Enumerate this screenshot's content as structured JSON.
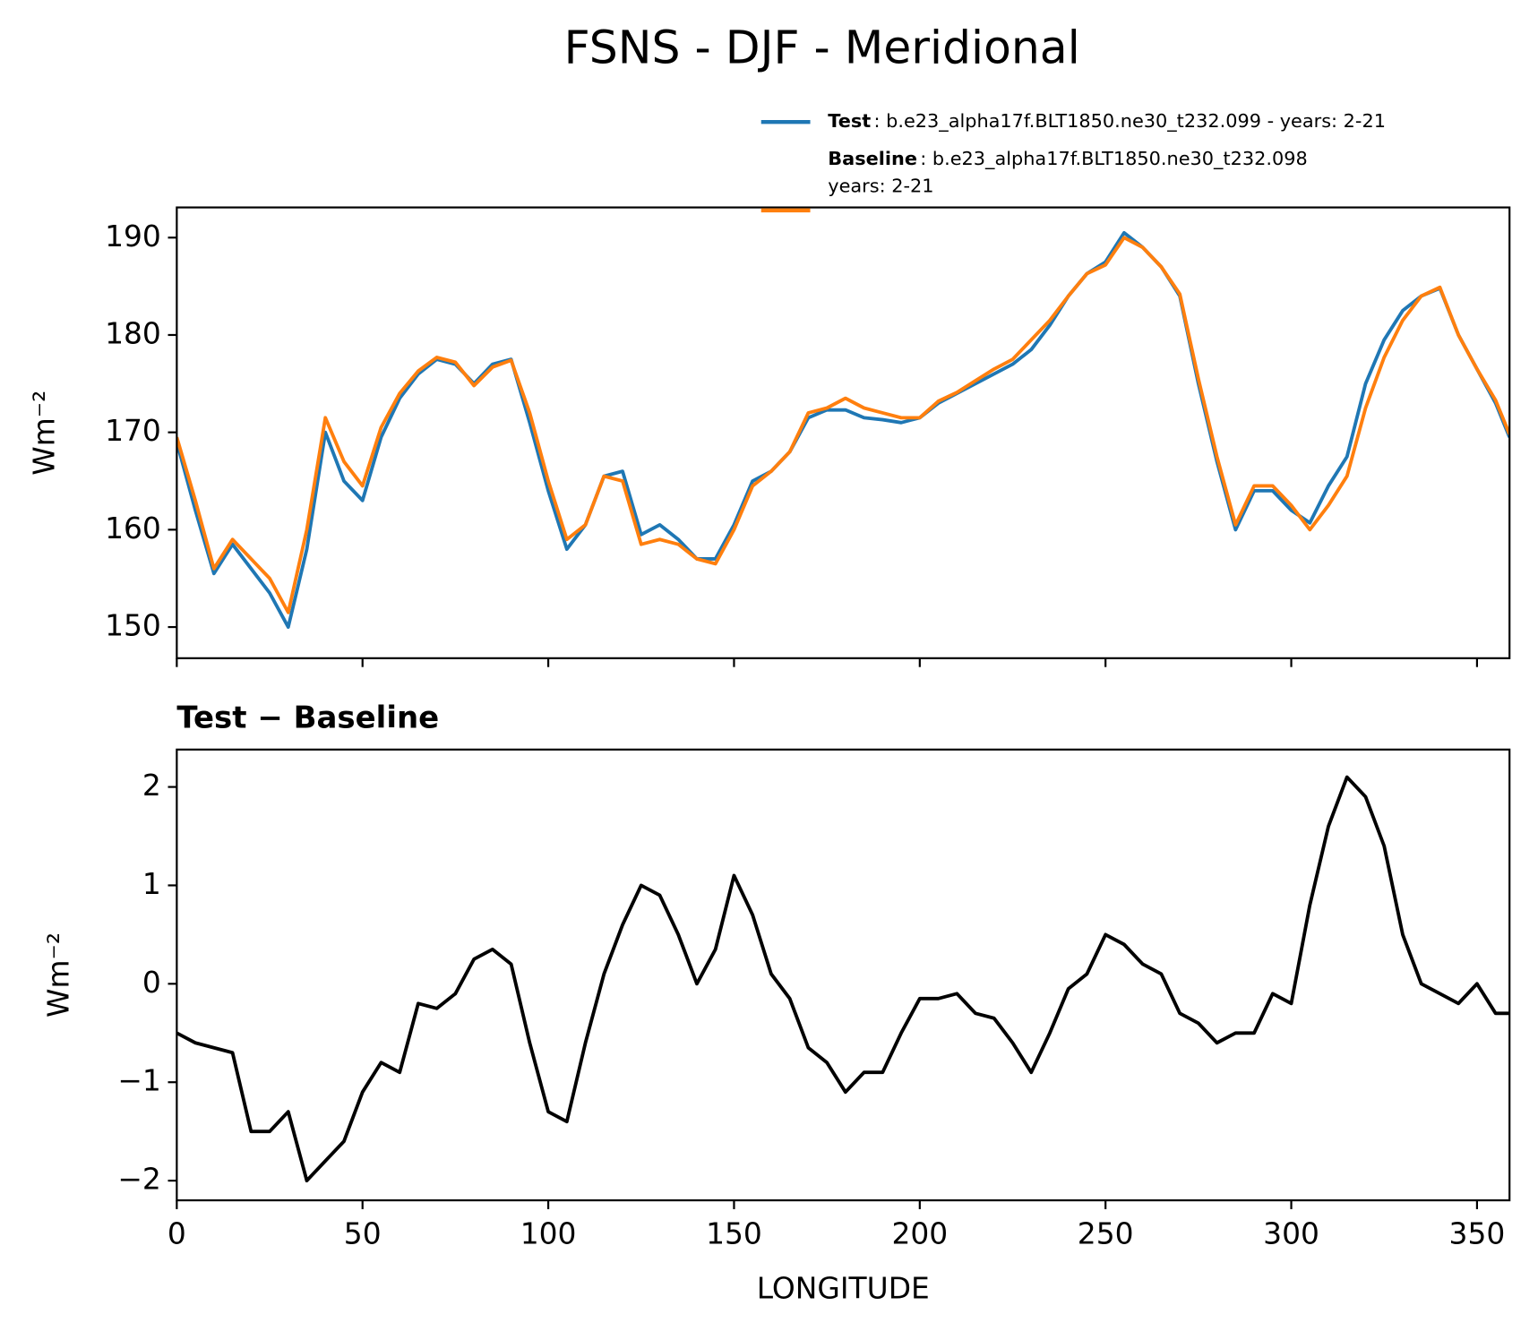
{
  "chart_data": [
    {
      "type": "line",
      "title": "FSNS - DJF - Meridional",
      "ylabel": "Wm⁻²",
      "show_xtick_labels": false,
      "x": [
        0,
        5,
        10,
        15,
        20,
        25,
        30,
        35,
        40,
        45,
        50,
        55,
        60,
        65,
        70,
        75,
        80,
        85,
        90,
        95,
        100,
        105,
        110,
        115,
        120,
        125,
        130,
        135,
        140,
        145,
        150,
        155,
        160,
        165,
        170,
        175,
        180,
        185,
        190,
        195,
        200,
        205,
        210,
        215,
        220,
        225,
        230,
        235,
        240,
        245,
        250,
        255,
        260,
        265,
        270,
        275,
        280,
        285,
        290,
        295,
        300,
        305,
        310,
        315,
        320,
        325,
        330,
        335,
        340,
        345,
        350,
        355,
        358.75
      ],
      "xlim": [
        0,
        358.75
      ],
      "xticks": [
        0,
        50,
        100,
        150,
        200,
        250,
        300,
        350
      ],
      "ylim": [
        146.8,
        193.1
      ],
      "yticks": [
        150,
        160,
        170,
        180,
        190
      ],
      "series": [
        {
          "name": "Test",
          "detail": [
            ": b.e23_alpha17f.BLT1850.ne30_t232.099 - years: 2-21"
          ],
          "color": "#1f77b4",
          "values": [
            169,
            162,
            155.5,
            158.5,
            156,
            153.5,
            150,
            158,
            170,
            165,
            163,
            169.5,
            173.5,
            176,
            177.5,
            177,
            175,
            177,
            177.5,
            171,
            164,
            158,
            160.5,
            165.5,
            166,
            159.5,
            160.5,
            159,
            157,
            157,
            160.5,
            165,
            166,
            168,
            171.5,
            172.3,
            172.3,
            171.5,
            171.3,
            171,
            171.5,
            173,
            174,
            175,
            176,
            177,
            178.5,
            181,
            184,
            186.3,
            187.5,
            190.5,
            189,
            187,
            184,
            175,
            167,
            160,
            164,
            164,
            162,
            160.7,
            164.5,
            167.5,
            175,
            179.5,
            182.5,
            184,
            184.8,
            180,
            176.5,
            173,
            169.5
          ]
        },
        {
          "name": "Baseline",
          "detail": [
            ": b.e23_alpha17f.BLT1850.ne30_t232.098",
            "years: 2-21"
          ],
          "color": "#ff7f0e",
          "values": [
            169.5,
            163,
            156,
            159,
            157,
            155,
            151.5,
            160,
            171.5,
            167,
            164.5,
            170.5,
            174,
            176.3,
            177.7,
            177.2,
            174.8,
            176.7,
            177.4,
            172,
            165,
            159,
            160.5,
            165.5,
            165,
            158.5,
            159,
            158.5,
            157,
            156.5,
            160,
            164.5,
            166,
            168,
            172,
            172.5,
            173.5,
            172.5,
            172,
            171.5,
            171.5,
            173.2,
            174.1,
            175.3,
            176.5,
            177.5,
            179.5,
            181.5,
            184,
            186.3,
            187.2,
            190,
            189,
            187,
            184.2,
            175.5,
            167.5,
            160.5,
            164.5,
            164.5,
            162.5,
            160,
            162.5,
            165.5,
            172.5,
            177.7,
            181.5,
            184,
            184.9,
            180,
            176.5,
            173.3,
            169.8
          ]
        }
      ]
    },
    {
      "type": "line",
      "subtitle": "Test − Baseline",
      "xlabel": "LONGITUDE",
      "ylabel": "Wm⁻²",
      "show_xtick_labels": true,
      "x": [
        0,
        5,
        10,
        15,
        20,
        25,
        30,
        35,
        40,
        45,
        50,
        55,
        60,
        65,
        70,
        75,
        80,
        85,
        90,
        95,
        100,
        105,
        110,
        115,
        120,
        125,
        130,
        135,
        140,
        145,
        150,
        155,
        160,
        165,
        170,
        175,
        180,
        185,
        190,
        195,
        200,
        205,
        210,
        215,
        220,
        225,
        230,
        235,
        240,
        245,
        250,
        255,
        260,
        265,
        270,
        275,
        280,
        285,
        290,
        295,
        300,
        305,
        310,
        315,
        320,
        325,
        330,
        335,
        340,
        345,
        350,
        355,
        358.75
      ],
      "xlim": [
        0,
        358.75
      ],
      "xticks": [
        0,
        50,
        100,
        150,
        200,
        250,
        300,
        350
      ],
      "ylim": [
        -2.2,
        2.38
      ],
      "yticks": [
        {
          "value": -2,
          "label": "−2"
        },
        {
          "value": -1,
          "label": "−1"
        },
        0,
        1,
        2
      ],
      "series": [
        {
          "color": "#000000",
          "values": [
            -0.5,
            -0.6,
            -0.65,
            -0.7,
            -1.5,
            -1.5,
            -1.3,
            -2.0,
            -1.8,
            -1.6,
            -1.1,
            -0.8,
            -0.9,
            -0.2,
            -0.25,
            -0.1,
            0.25,
            0.35,
            0.2,
            -0.6,
            -1.3,
            -1.4,
            -0.6,
            0.1,
            0.6,
            1.0,
            0.9,
            0.5,
            0.0,
            0.35,
            1.1,
            0.7,
            0.1,
            -0.15,
            -0.65,
            -0.8,
            -1.1,
            -0.9,
            -0.9,
            -0.5,
            -0.15,
            -0.15,
            -0.1,
            -0.3,
            -0.35,
            -0.6,
            -0.9,
            -0.5,
            -0.05,
            0.1,
            0.5,
            0.4,
            0.2,
            0.1,
            -0.3,
            -0.4,
            -0.6,
            -0.5,
            -0.5,
            -0.1,
            -0.2,
            0.8,
            1.6,
            2.1,
            1.9,
            1.4,
            0.5,
            0.0,
            -0.1,
            -0.2,
            0.0,
            -0.3,
            -0.3
          ]
        }
      ]
    }
  ]
}
